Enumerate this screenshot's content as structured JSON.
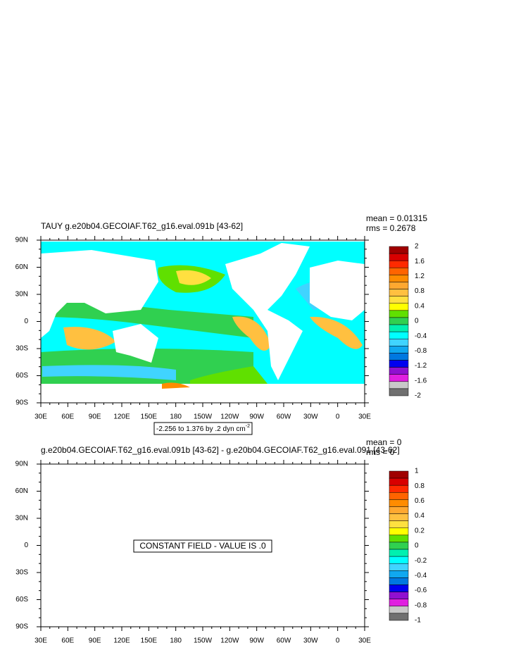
{
  "panels": [
    {
      "title": "TAUY g.e20b04.GECOIAF.T62_g16.eval.091b [43-62]",
      "mean": "mean = 0.01315",
      "rms": "rms = 0.2678",
      "x_labels": [
        "30E",
        "60E",
        "90E",
        "120E",
        "150E",
        "180",
        "150W",
        "120W",
        "90W",
        "60W",
        "30W",
        "0",
        "30E"
      ],
      "y_labels": [
        "90N",
        "60N",
        "30N",
        "0",
        "30S",
        "60S",
        "90S"
      ],
      "colorbar": {
        "labels": [
          "2",
          "1.6",
          "1.2",
          "0.8",
          "0.4",
          "0",
          "-0.4",
          "-0.8",
          "-1.2",
          "-1.6",
          "-2"
        ],
        "colors": [
          "#a00000",
          "#d80000",
          "#ff2a00",
          "#ff6400",
          "#ff8c00",
          "#ffa830",
          "#ffc040",
          "#ffe040",
          "#ffff00",
          "#60e000",
          "#30d050",
          "#00f0b0",
          "#00ffff",
          "#40d4ff",
          "#10a8f0",
          "#0078e0",
          "#0000f0",
          "#9010d0",
          "#e020e0",
          "#c8c8c8",
          "#707070"
        ]
      },
      "info_box": {
        "text": "-2.256 to 1.376 by .2 dyn cm",
        "superscript": "-2"
      }
    },
    {
      "title": "g.e20b04.GECOIAF.T62_g16.eval.091b [43-62] - g.e20b04.GECOIAF.T62_g16.eval.091 [43-62]",
      "mean": "mean = 0",
      "rms": "rms = 0",
      "x_labels": [
        "30E",
        "60E",
        "90E",
        "120E",
        "150E",
        "180",
        "150W",
        "120W",
        "90W",
        "60W",
        "30W",
        "0",
        "30E"
      ],
      "y_labels": [
        "90N",
        "60N",
        "30N",
        "0",
        "30S",
        "60S",
        "90S"
      ],
      "colorbar": {
        "labels": [
          "1",
          "0.8",
          "0.6",
          "0.4",
          "0.2",
          "0",
          "-0.2",
          "-0.4",
          "-0.6",
          "-0.8",
          "-1"
        ],
        "colors": [
          "#a00000",
          "#d80000",
          "#ff2a00",
          "#ff6400",
          "#ff8c00",
          "#ffa830",
          "#ffc040",
          "#ffe040",
          "#ffff00",
          "#60e000",
          "#30d050",
          "#00f0b0",
          "#00ffff",
          "#40d4ff",
          "#10a8f0",
          "#0078e0",
          "#0000f0",
          "#9010d0",
          "#e020e0",
          "#c8c8c8",
          "#707070"
        ]
      },
      "message": "CONSTANT FIELD - VALUE IS .0"
    }
  ]
}
